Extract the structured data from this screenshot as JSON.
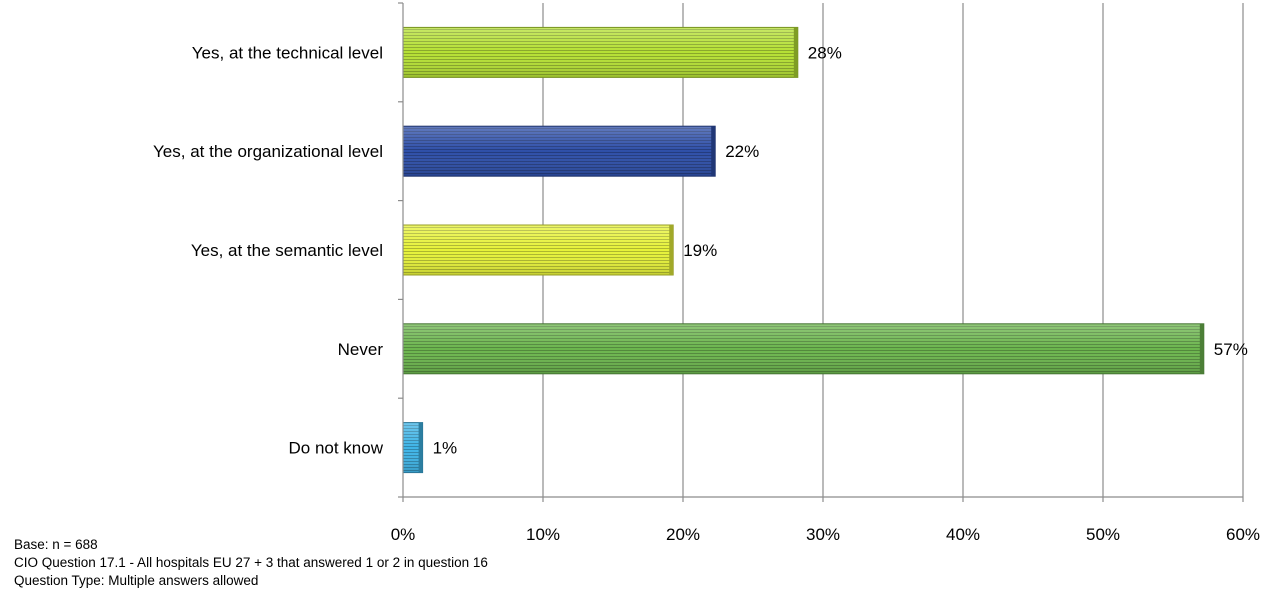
{
  "chart_data": {
    "type": "bar",
    "orientation": "horizontal",
    "categories": [
      "Yes, at the technical level",
      "Yes, at the organizational level",
      "Yes, at the semantic level",
      "Never",
      "Do not know"
    ],
    "values": [
      28.2,
      22.3,
      19.3,
      57.2,
      1.4
    ],
    "value_labels": [
      "28%",
      "22%",
      "19%",
      "57%",
      "1%"
    ],
    "bar_colors": [
      "#b5e035",
      "#2e4fa8",
      "#e6f23a",
      "#6cb54e",
      "#3fb4e6"
    ],
    "xlim": [
      0,
      60
    ],
    "x_ticks": [
      0,
      10,
      20,
      30,
      40,
      50,
      60
    ],
    "x_tick_labels": [
      "0%",
      "10%",
      "20%",
      "30%",
      "40%",
      "50%",
      "60%"
    ],
    "grid": true,
    "title": "",
    "xlabel": "",
    "ylabel": ""
  },
  "footnotes": {
    "base": "Base: n = 688",
    "question": "CIO Question 17.1 - All hospitals EU 27 + 3 that answered 1 or 2 in question 16",
    "question_type": "Question Type: Multiple answers allowed"
  }
}
